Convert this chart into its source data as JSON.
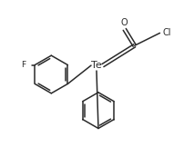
{
  "background": "#ffffff",
  "line_color": "#2a2a2a",
  "line_width": 1.1,
  "font_size": 6.5,
  "label_Te": "Te",
  "label_F": "F",
  "label_O": "O",
  "label_Cl": "Cl",
  "figsize": [
    2.03,
    1.62
  ],
  "dpi": 100
}
